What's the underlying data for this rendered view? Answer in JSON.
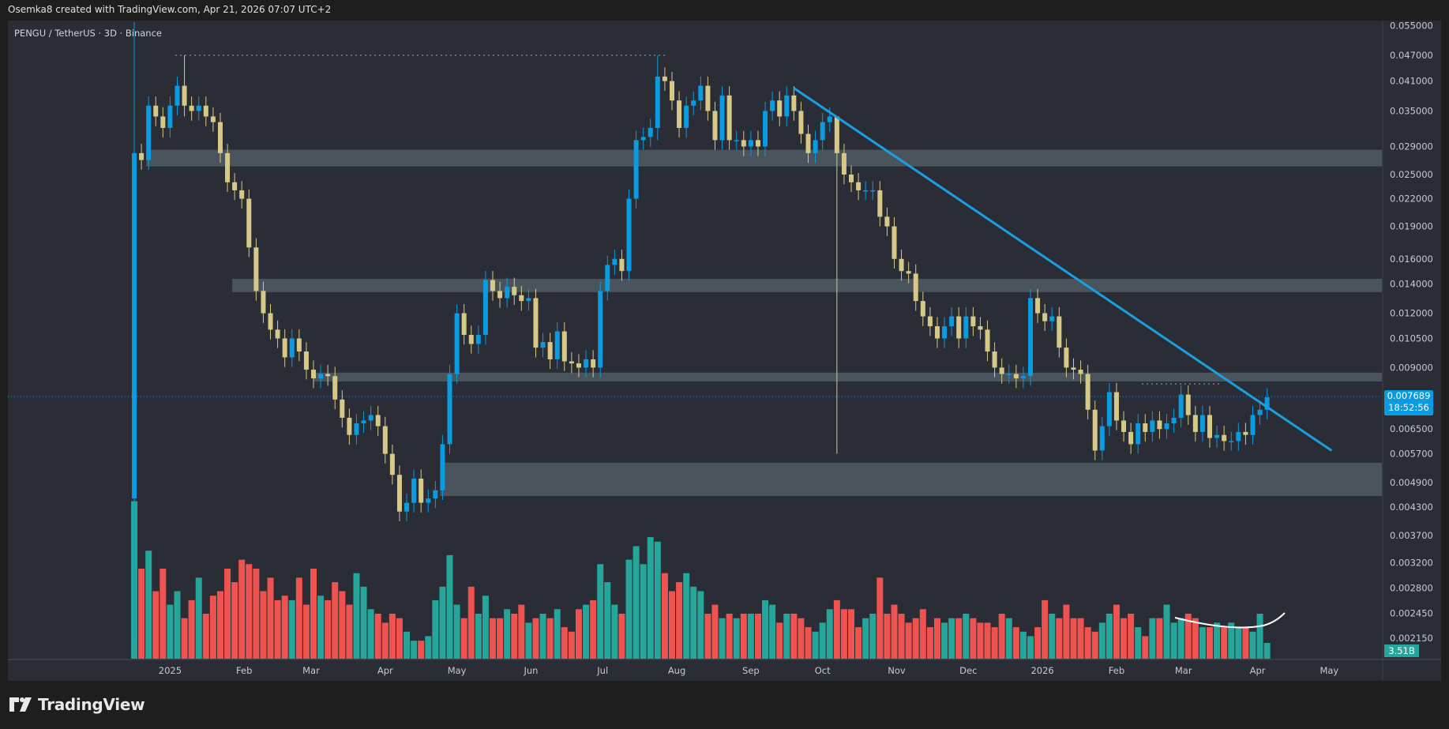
{
  "header": {
    "attribution": "Osemka8 created with TradingView.com, Apr 21, 2026 07:07 UTC+2"
  },
  "symbol": {
    "title": "PENGU / TetherUS · 3D · Binance"
  },
  "logo": {
    "text": "TradingView"
  },
  "last_price": {
    "value": "0.007689",
    "countdown": "18:52:56"
  },
  "volume_label": "3.51B",
  "colors": {
    "up": "#0a9be0",
    "down": "#d6c987",
    "vol_up": "#26a69a",
    "vol_down": "#ef5350",
    "zone": "#4a545c",
    "trendline": "#1a9fe0"
  },
  "chart_data": {
    "type": "candlestick",
    "title": "PENGU / TetherUS · 3D · Binance",
    "scale": "log",
    "ylim": [
      0.0021,
      0.056
    ],
    "start_date": "2024-12-17",
    "interval_days": 3,
    "open_rule": "open = previous close",
    "first_open": 0.0045,
    "closes": [
      0.028,
      0.027,
      0.036,
      0.034,
      0.032,
      0.036,
      0.04,
      0.036,
      0.035,
      0.036,
      0.034,
      0.033,
      0.028,
      0.024,
      0.023,
      0.022,
      0.017,
      0.0135,
      0.012,
      0.011,
      0.0105,
      0.0095,
      0.0105,
      0.0098,
      0.0089,
      0.0085,
      0.0087,
      0.0086,
      0.0076,
      0.0069,
      0.0063,
      0.0067,
      0.0068,
      0.007,
      0.0066,
      0.0057,
      0.0051,
      0.0042,
      0.0044,
      0.005,
      0.0044,
      0.0045,
      0.0047,
      0.006,
      0.0087,
      0.012,
      0.0107,
      0.0102,
      0.0107,
      0.0143,
      0.0135,
      0.013,
      0.0138,
      0.0132,
      0.0128,
      0.013,
      0.01,
      0.0103,
      0.0094,
      0.0109,
      0.0093,
      0.0092,
      0.009,
      0.0094,
      0.009,
      0.0135,
      0.0155,
      0.016,
      0.015,
      0.022,
      0.03,
      0.0305,
      0.032,
      0.042,
      0.041,
      0.037,
      0.032,
      0.036,
      0.037,
      0.04,
      0.035,
      0.03,
      0.038,
      0.03,
      0.03,
      0.029,
      0.03,
      0.029,
      0.035,
      0.037,
      0.034,
      0.038,
      0.035,
      0.031,
      0.028,
      0.03,
      0.033,
      0.034,
      0.028,
      0.025,
      0.024,
      0.023,
      0.023,
      0.023,
      0.02,
      0.019,
      0.016,
      0.015,
      0.0148,
      0.0128,
      0.0118,
      0.0112,
      0.0105,
      0.0112,
      0.0118,
      0.0105,
      0.0118,
      0.0112,
      0.011,
      0.0098,
      0.009,
      0.0087,
      0.0087,
      0.0085,
      0.0086,
      0.013,
      0.012,
      0.0115,
      0.0118,
      0.01,
      0.009,
      0.0089,
      0.0087,
      0.0072,
      0.0058,
      0.0066,
      0.0079,
      0.0068,
      0.0064,
      0.006,
      0.0067,
      0.0064,
      0.0068,
      0.0065,
      0.0067,
      0.0069,
      0.0078,
      0.007,
      0.0064,
      0.007,
      0.0062,
      0.0063,
      0.0061,
      0.0061,
      0.0064,
      0.0063,
      0.007,
      0.0072,
      0.007689
    ],
    "notable_wicks": [
      {
        "index": 0,
        "high": 0.056,
        "low": 0.0021
      },
      {
        "index": 98,
        "high": 0.034,
        "low": 0.0057
      },
      {
        "index": 73,
        "high": 0.047,
        "low": 0.03
      },
      {
        "index": 7,
        "high": 0.047,
        "low": 0.034
      }
    ],
    "volume_billions": [
      35,
      20,
      24,
      15,
      20,
      12,
      15,
      9,
      13,
      18,
      10,
      14,
      15,
      20,
      17,
      22,
      21,
      20,
      15,
      18,
      13,
      14,
      13,
      18,
      12,
      20,
      14,
      13,
      17,
      15,
      12,
      19,
      16,
      11,
      10,
      8,
      10,
      9,
      6,
      4,
      4,
      5,
      13,
      16,
      23,
      12,
      9,
      16,
      10,
      14,
      9,
      9,
      11,
      10,
      12,
      8,
      9,
      10,
      9,
      11,
      7,
      6,
      11,
      12,
      13,
      21,
      17,
      12,
      10,
      22,
      25,
      21,
      27,
      26,
      19,
      15,
      17,
      19,
      16,
      15,
      10,
      12,
      9,
      10,
      9,
      10,
      10,
      10,
      13,
      12,
      8,
      10,
      10,
      9,
      7,
      6,
      8,
      11,
      13,
      11,
      11,
      7,
      9,
      10,
      18,
      10,
      12,
      10,
      8,
      9,
      11,
      7,
      9,
      8,
      9,
      9,
      10,
      9,
      8,
      8,
      7,
      10,
      9,
      7,
      6,
      5,
      7,
      13,
      10,
      9,
      12,
      9,
      9,
      7,
      6,
      8,
      10,
      12,
      9,
      10,
      7,
      5,
      9,
      9,
      12,
      8,
      9,
      10,
      9,
      7,
      7,
      8,
      7,
      8,
      7,
      7,
      6,
      10,
      3.51
    ],
    "zones": [
      {
        "top": 0.0285,
        "bottom": 0.0261,
        "from": "2024-12-22"
      },
      {
        "top": 0.0144,
        "bottom": 0.01342,
        "from": "2025-01-27"
      },
      {
        "top": 0.00876,
        "bottom": 0.00836,
        "from": "2025-03-02"
      },
      {
        "top": 0.00544,
        "bottom": 0.00456,
        "from": "2025-04-24"
      }
    ],
    "trendline": {
      "from": {
        "date": "2025-09-19",
        "price": 0.0395
      },
      "to": {
        "date": "2026-05-02",
        "price": 0.0058
      }
    },
    "price_ticks": [
      "0.055000",
      "0.047000",
      "0.041000",
      "0.035000",
      "0.029000",
      "0.025000",
      "0.022000",
      "0.019000",
      "0.016000",
      "0.014000",
      "0.012000",
      "0.010500",
      "0.009000",
      "0.006500",
      "0.005700",
      "0.004900",
      "0.004300",
      "0.003700",
      "0.003200",
      "0.002800",
      "0.002450",
      "0.002150"
    ],
    "time_ticks": [
      {
        "label": "2025",
        "date": "2025-01-01"
      },
      {
        "label": "Feb",
        "date": "2025-02-01"
      },
      {
        "label": "Mar",
        "date": "2025-03-01"
      },
      {
        "label": "Apr",
        "date": "2025-04-01"
      },
      {
        "label": "May",
        "date": "2025-05-01"
      },
      {
        "label": "Jun",
        "date": "2025-06-01"
      },
      {
        "label": "Jul",
        "date": "2025-07-01"
      },
      {
        "label": "Aug",
        "date": "2025-08-01"
      },
      {
        "label": "Sep",
        "date": "2025-09-01"
      },
      {
        "label": "Oct",
        "date": "2025-10-01"
      },
      {
        "label": "Nov",
        "date": "2025-11-01"
      },
      {
        "label": "Dec",
        "date": "2025-12-01"
      },
      {
        "label": "2026",
        "date": "2026-01-01"
      },
      {
        "label": "Feb",
        "date": "2026-02-01"
      },
      {
        "label": "Mar",
        "date": "2026-03-01"
      },
      {
        "label": "Apr",
        "date": "2026-04-01"
      },
      {
        "label": "May",
        "date": "2026-05-01"
      }
    ]
  }
}
